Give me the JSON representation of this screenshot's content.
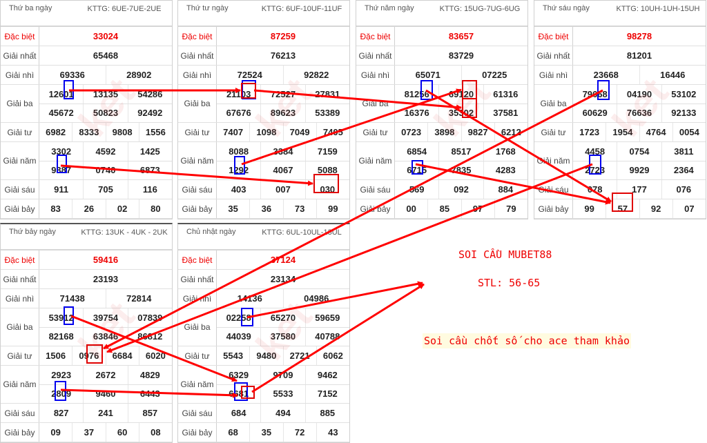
{
  "watermark": "ketqua.net",
  "colors": {
    "highlight_box": "#e00000",
    "source_box": "#0000ee",
    "arrow": "#ff0000",
    "special": "#e00000"
  },
  "labels": [
    "Đặc biệt",
    "Giải nhất",
    "Giải nhì",
    "Giải ba",
    "Giải tư",
    "Giải năm",
    "Giải sáu",
    "Giải bảy"
  ],
  "tables": [
    {
      "day": "Thứ ba ngày",
      "kttg": "KTTG: 6UE-7UE-2UE",
      "db": [
        "33024"
      ],
      "g1": [
        "65468"
      ],
      "g2": [
        "69336",
        "28902"
      ],
      "g3": [
        "12601",
        "13135",
        "54286",
        "45672",
        "50823",
        "92492"
      ],
      "g4": [
        "6982",
        "8333",
        "9808",
        "1556"
      ],
      "g5": [
        "3302",
        "4592",
        "1425",
        "9387",
        "0740",
        "6873"
      ],
      "g6": [
        "911",
        "705",
        "116"
      ],
      "g7": [
        "83",
        "26",
        "02",
        "80"
      ]
    },
    {
      "day": "Thứ tư ngày",
      "kttg": "KTTG: 6UF-10UF-11UF",
      "db": [
        "87259"
      ],
      "g1": [
        "76213"
      ],
      "g2": [
        "72524",
        "92822"
      ],
      "g3": [
        "21103",
        "72527",
        "27831",
        "67676",
        "89623",
        "53389"
      ],
      "g4": [
        "7407",
        "1098",
        "7049",
        "7405"
      ],
      "g5": [
        "8088",
        "3384",
        "7159",
        "1292",
        "4067",
        "5088"
      ],
      "g6": [
        "403",
        "007",
        "030"
      ],
      "g7": [
        "35",
        "36",
        "73",
        "99"
      ]
    },
    {
      "day": "Thứ năm ngày",
      "kttg": "KTTG: 15UG-7UG-6UG",
      "db": [
        "83657"
      ],
      "g1": [
        "83729"
      ],
      "g2": [
        "65071",
        "07225"
      ],
      "g3": [
        "81256",
        "69120",
        "61316",
        "16376",
        "35302",
        "37581"
      ],
      "g4": [
        "0723",
        "3898",
        "9827",
        "6212"
      ],
      "g5": [
        "6854",
        "8517",
        "1768",
        "6715",
        "7835",
        "4283"
      ],
      "g6": [
        "569",
        "092",
        "884"
      ],
      "g7": [
        "00",
        "85",
        "97",
        "79"
      ]
    },
    {
      "day": "Thứ sáu ngày",
      "kttg": "KTTG: 10UH-1UH-15UH",
      "db": [
        "98278"
      ],
      "g1": [
        "81201"
      ],
      "g2": [
        "23668",
        "16446"
      ],
      "g3": [
        "79668",
        "04190",
        "53102",
        "60629",
        "76636",
        "92133"
      ],
      "g4": [
        "1723",
        "1954",
        "4764",
        "0054"
      ],
      "g5": [
        "4458",
        "0754",
        "3811",
        "2723",
        "9929",
        "2364"
      ],
      "g6": [
        "078",
        "177",
        "076"
      ],
      "g7": [
        "99",
        "57",
        "92",
        "07"
      ]
    },
    {
      "day": "Thứ bảy ngày",
      "kttg": "KTTG: 13UK - 4UK - 2UK",
      "db": [
        "59416"
      ],
      "g1": [
        "23193"
      ],
      "g2": [
        "71438",
        "72814"
      ],
      "g3": [
        "53912",
        "39754",
        "07839",
        "82168",
        "63846",
        "86812"
      ],
      "g4": [
        "1506",
        "0976",
        "6684",
        "6020"
      ],
      "g5": [
        "2923",
        "2672",
        "4829",
        "2809",
        "9460",
        "6443"
      ],
      "g6": [
        "827",
        "241",
        "857"
      ],
      "g7": [
        "09",
        "37",
        "60",
        "08"
      ]
    },
    {
      "day": "Chủ nhật ngày",
      "kttg": "KTTG: 6UL-10UL-13UL",
      "db": [
        "37124"
      ],
      "g1": [
        "23134"
      ],
      "g2": [
        "14136",
        "04986"
      ],
      "g3": [
        "02258",
        "65270",
        "59659",
        "44039",
        "37580",
        "40788"
      ],
      "g4": [
        "5543",
        "9480",
        "2721",
        "6062"
      ],
      "g5": [
        "6329",
        "9709",
        "9462",
        "6681",
        "5533",
        "7152"
      ],
      "g6": [
        "684",
        "494",
        "885"
      ],
      "g7": [
        "68",
        "35",
        "72",
        "43"
      ]
    }
  ],
  "notes": {
    "title": "SOI CẦU MUBET88",
    "stl": "STL: 56-65",
    "caption": "Soi cầu chốt số cho ace tham khảo"
  }
}
